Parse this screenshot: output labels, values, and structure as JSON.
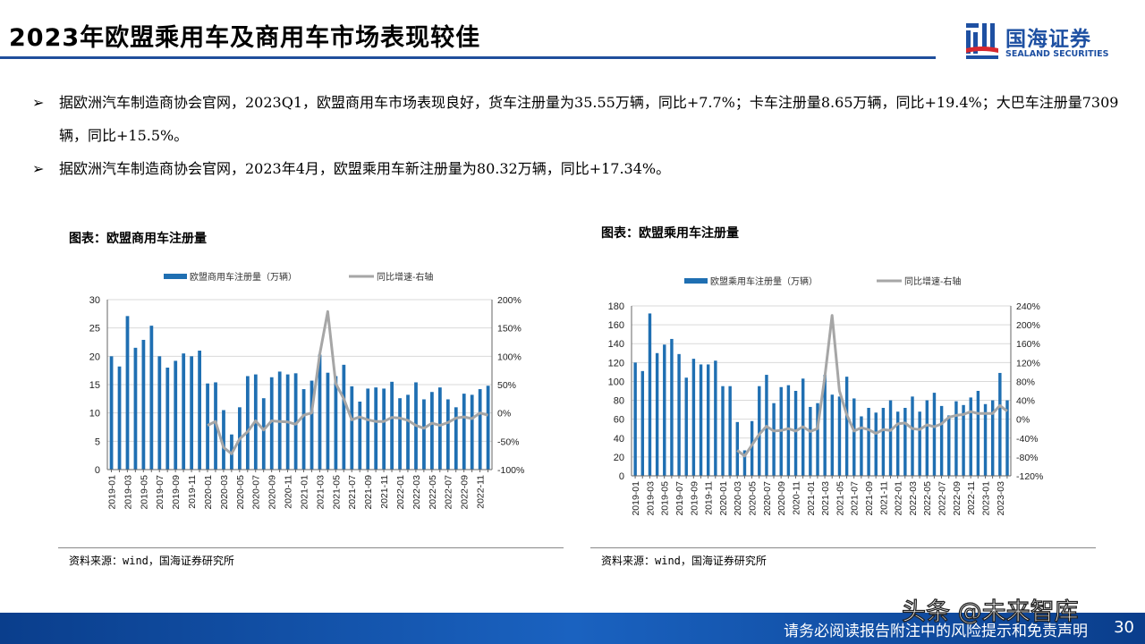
{
  "title": "2023年欧盟乘用车及商用车市场表现较佳",
  "logo": {
    "cn": "国海证券",
    "en": "SEALAND SECURITIES"
  },
  "bullets": [
    "据欧洲汽车制造商协会官网，2023Q1，欧盟商用车市场表现良好，货车注册量为35.55万辆，同比+7.7%；卡车注册量8.65万辆，同比+19.4%；大巴车注册量7309辆，同比+15.5%。",
    "据欧洲汽车制造商协会官网，2023年4月，欧盟乘用车新注册量为80.32万辆，同比+17.34%。"
  ],
  "bullet_icon": "arrow-right-icon",
  "footer": {
    "note": "请务必阅读报告附注中的风险提示和免责声明",
    "page": "30",
    "watermark": "头条 @未来智库"
  },
  "colors": {
    "bar": "#1f6fb2",
    "line": "#a6a6a6",
    "accent": "#1f4e9c"
  },
  "chart_data": [
    {
      "type": "bar+line",
      "title": "图表：欧盟商用车注册量",
      "source": "资料来源：wind，国海证券研究所",
      "legend": [
        "欧盟商用车注册量（万辆）",
        "同比增速-右轴"
      ],
      "legend_placement": "top",
      "categories": [
        "2019-01",
        "2019-02",
        "2019-03",
        "2019-04",
        "2019-05",
        "2019-06",
        "2019-07",
        "2019-08",
        "2019-09",
        "2019-10",
        "2019-11",
        "2019-12",
        "2020-01",
        "2020-02",
        "2020-03",
        "2020-04",
        "2020-05",
        "2020-06",
        "2020-07",
        "2020-08",
        "2020-09",
        "2020-10",
        "2020-11",
        "2020-12",
        "2021-01",
        "2021-02",
        "2021-03",
        "2021-04",
        "2021-05",
        "2021-06",
        "2021-07",
        "2021-08",
        "2021-09",
        "2021-10",
        "2021-11",
        "2021-12",
        "2022-01",
        "2022-02",
        "2022-03",
        "2022-04",
        "2022-05",
        "2022-06",
        "2022-07",
        "2022-08",
        "2022-09",
        "2022-10",
        "2022-11",
        "2022-12"
      ],
      "series": [
        {
          "name": "欧盟商用车注册量（万辆）",
          "axis": "left",
          "values": [
            20,
            18.2,
            27.1,
            21.5,
            22.9,
            25.4,
            20,
            18,
            19.2,
            20.5,
            20,
            21,
            15.2,
            15.4,
            10.5,
            6.2,
            11,
            16.5,
            16.8,
            12.6,
            16.3,
            17.3,
            16.8,
            17,
            14.2,
            15.7,
            20.3,
            17.1,
            16.5,
            18.5,
            14.7,
            12,
            14.3,
            14.5,
            14.3,
            15.5,
            12.6,
            13.2,
            15.4,
            12.4,
            13.7,
            14.5,
            12.4,
            11,
            13.4,
            13.2,
            14.2,
            14.8
          ]
        },
        {
          "name": "同比增速-右轴",
          "axis": "right",
          "values": [
            null,
            null,
            null,
            null,
            null,
            null,
            null,
            null,
            null,
            null,
            null,
            null,
            -22,
            -15,
            -61,
            -72,
            -46,
            -33,
            -14,
            -30,
            -14,
            -15,
            -16,
            -20,
            -4,
            0,
            103,
            179,
            52,
            25,
            -12,
            -7,
            -12,
            -15,
            -15,
            -8,
            -9,
            -13,
            -22,
            -27,
            -18,
            -22,
            -17,
            -9,
            -7,
            -10,
            0,
            -4
          ]
        }
      ],
      "ylim": [
        0,
        30
      ],
      "yticks": [
        "0",
        "5",
        "10",
        "15",
        "20",
        "25",
        "30"
      ],
      "y2lim": [
        -100,
        200
      ],
      "y2ticks": [
        "-100%",
        "-50%",
        "0%",
        "50%",
        "100%",
        "150%",
        "200%"
      ],
      "grid": true
    },
    {
      "type": "bar+line",
      "title": "图表：欧盟乘用车注册量",
      "source": "资料来源：wind，国海证券研究所",
      "legend": [
        "欧盟乘用车注册量（万辆）",
        "同比增速-右轴"
      ],
      "legend_placement": "top",
      "categories": [
        "2019-01",
        "2019-02",
        "2019-03",
        "2019-04",
        "2019-05",
        "2019-06",
        "2019-07",
        "2019-08",
        "2019-09",
        "2019-10",
        "2019-11",
        "2019-12",
        "2020-01",
        "2020-02",
        "2020-03",
        "2020-04",
        "2020-05",
        "2020-06",
        "2020-07",
        "2020-08",
        "2020-09",
        "2020-10",
        "2020-11",
        "2020-12",
        "2021-01",
        "2021-02",
        "2021-03",
        "2021-04",
        "2021-05",
        "2021-06",
        "2021-07",
        "2021-08",
        "2021-09",
        "2021-10",
        "2021-11",
        "2021-12",
        "2022-01",
        "2022-02",
        "2022-03",
        "2022-04",
        "2022-05",
        "2022-06",
        "2022-07",
        "2022-08",
        "2022-09",
        "2022-10",
        "2022-11",
        "2022-12",
        "2023-01",
        "2023-02",
        "2023-03",
        "2023-04"
      ],
      "series": [
        {
          "name": "欧盟乘用车注册量（万辆）",
          "axis": "left",
          "values": [
            120,
            111,
            172,
            130,
            139,
            145,
            129,
            104,
            124,
            118,
            118,
            122,
            95,
            95,
            57,
            27,
            58,
            95,
            107,
            77,
            94,
            96,
            90,
            103,
            73,
            77,
            107,
            86,
            84,
            105,
            82,
            63,
            72,
            67,
            72,
            80,
            68,
            72,
            84,
            68,
            80,
            88,
            74,
            64,
            79,
            75,
            83,
            90,
            76,
            80,
            109,
            80
          ]
        },
        {
          "name": "同比增速-右轴",
          "axis": "right",
          "values": [
            null,
            null,
            null,
            null,
            null,
            null,
            null,
            null,
            null,
            null,
            null,
            null,
            null,
            null,
            -66,
            -78,
            -55,
            -32,
            -15,
            -25,
            -24,
            -20,
            -25,
            -16,
            -26,
            -20,
            90,
            220,
            60,
            10,
            -25,
            -18,
            -22,
            -30,
            -22,
            -24,
            -10,
            -8,
            -20,
            -22,
            -12,
            -16,
            -10,
            4,
            8,
            10,
            16,
            12,
            12,
            12,
            29,
            17
          ]
        }
      ],
      "ylim": [
        0,
        180
      ],
      "yticks": [
        "0",
        "20",
        "40",
        "60",
        "80",
        "100",
        "120",
        "140",
        "160",
        "180"
      ],
      "y2lim": [
        -120,
        240
      ],
      "y2ticks": [
        "-120%",
        "-80%",
        "-40%",
        "0%",
        "40%",
        "80%",
        "120%",
        "160%",
        "200%",
        "240%"
      ],
      "grid": true
    }
  ]
}
